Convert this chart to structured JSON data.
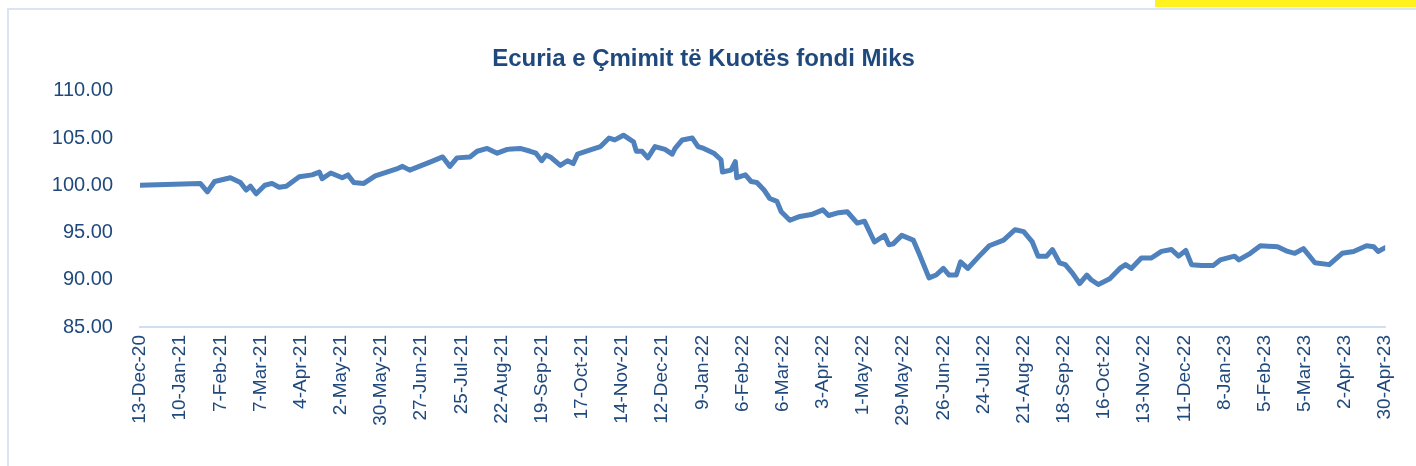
{
  "chart_data": {
    "type": "line",
    "title": "Ecuria e Çmimit të Kuotës fondi Miks",
    "x": [
      "2020-12-13",
      "2021-01-24",
      "2021-01-29",
      "2021-02-03",
      "2021-02-14",
      "2021-02-21",
      "2021-02-25",
      "2021-02-28",
      "2021-03-04",
      "2021-03-10",
      "2021-03-15",
      "2021-03-20",
      "2021-03-25",
      "2021-04-03",
      "2021-04-12",
      "2021-04-17",
      "2021-04-19",
      "2021-04-25",
      "2021-05-03",
      "2021-05-07",
      "2021-05-11",
      "2021-05-18",
      "2021-05-26",
      "2021-06-11",
      "2021-06-14",
      "2021-06-19",
      "2021-07-04",
      "2021-07-12",
      "2021-07-17",
      "2021-07-22",
      "2021-07-31",
      "2021-08-05",
      "2021-08-12",
      "2021-08-19",
      "2021-08-26",
      "2021-09-04",
      "2021-09-11",
      "2021-09-15",
      "2021-09-19",
      "2021-09-22",
      "2021-09-25",
      "2021-10-02",
      "2021-10-07",
      "2021-10-11",
      "2021-10-14",
      "2021-10-24",
      "2021-10-30",
      "2021-11-05",
      "2021-11-09",
      "2021-11-15",
      "2021-11-22",
      "2021-11-24",
      "2021-11-28",
      "2021-12-02",
      "2021-12-07",
      "2021-12-14",
      "2021-12-19",
      "2021-12-21",
      "2021-12-26",
      "2022-01-02",
      "2022-01-06",
      "2022-01-10",
      "2022-01-17",
      "2022-01-22",
      "2022-01-23",
      "2022-01-29",
      "2022-02-01",
      "2022-02-02",
      "2022-02-08",
      "2022-02-12",
      "2022-02-16",
      "2022-02-21",
      "2022-02-25",
      "2022-03-02",
      "2022-03-05",
      "2022-03-11",
      "2022-03-18",
      "2022-03-26",
      "2022-04-03",
      "2022-04-07",
      "2022-04-14",
      "2022-04-20",
      "2022-04-27",
      "2022-05-02",
      "2022-05-09",
      "2022-05-16",
      "2022-05-19",
      "2022-05-22",
      "2022-05-28",
      "2022-06-05",
      "2022-06-09",
      "2022-06-16",
      "2022-06-21",
      "2022-06-26",
      "2022-06-30",
      "2022-07-05",
      "2022-07-08",
      "2022-07-13",
      "2022-07-21",
      "2022-07-28",
      "2022-08-07",
      "2022-08-15",
      "2022-08-21",
      "2022-08-27",
      "2022-08-31",
      "2022-09-06",
      "2022-09-10",
      "2022-09-15",
      "2022-09-19",
      "2022-09-24",
      "2022-09-29",
      "2022-10-04",
      "2022-10-07",
      "2022-10-12",
      "2022-10-20",
      "2022-10-27",
      "2022-10-31",
      "2022-11-04",
      "2022-11-11",
      "2022-11-18",
      "2022-11-25",
      "2022-12-02",
      "2022-12-07",
      "2022-12-12",
      "2022-12-16",
      "2022-12-23",
      "2022-12-31",
      "2023-01-05",
      "2023-01-15",
      "2023-01-18",
      "2023-01-26",
      "2023-02-02",
      "2023-02-14",
      "2023-02-21",
      "2023-02-26",
      "2023-03-04",
      "2023-03-12",
      "2023-03-22",
      "2023-03-31",
      "2023-04-08",
      "2023-04-17",
      "2023-04-22",
      "2023-04-25",
      "2023-04-30"
    ],
    "series": [
      {
        "color": "#4f81bd",
        "values": [
          100.0,
          100.2,
          99.3,
          100.4,
          100.8,
          100.3,
          99.5,
          99.9,
          99.1,
          100.0,
          100.2,
          99.8,
          99.9,
          100.9,
          101.1,
          101.4,
          100.7,
          101.3,
          100.8,
          101.1,
          100.3,
          100.2,
          101.0,
          101.8,
          102.0,
          101.6,
          102.5,
          103.0,
          102.0,
          102.9,
          103.0,
          103.6,
          103.9,
          103.4,
          103.8,
          103.9,
          103.6,
          103.4,
          102.6,
          103.2,
          103.0,
          102.1,
          102.6,
          102.3,
          103.3,
          103.8,
          104.1,
          105.0,
          104.8,
          105.3,
          104.6,
          103.6,
          103.6,
          102.9,
          104.1,
          103.8,
          103.3,
          103.9,
          104.8,
          105.0,
          104.1,
          103.9,
          103.4,
          102.7,
          101.4,
          101.6,
          102.5,
          100.8,
          101.1,
          100.4,
          100.3,
          99.5,
          98.6,
          98.3,
          97.2,
          96.3,
          96.7,
          96.9,
          97.4,
          96.8,
          97.1,
          97.2,
          96.0,
          96.2,
          94.0,
          94.7,
          93.7,
          93.8,
          94.7,
          94.2,
          92.8,
          90.2,
          90.5,
          91.2,
          90.5,
          90.5,
          91.9,
          91.2,
          92.5,
          93.6,
          94.2,
          95.3,
          95.1,
          94.0,
          92.5,
          92.5,
          93.2,
          91.8,
          91.6,
          90.7,
          89.6,
          90.5,
          90.0,
          89.5,
          90.1,
          91.2,
          91.6,
          91.2,
          92.3,
          92.3,
          93.0,
          93.2,
          92.5,
          93.1,
          91.6,
          91.5,
          91.5,
          92.1,
          92.5,
          92.1,
          92.8,
          93.6,
          93.5,
          93.0,
          92.8,
          93.3,
          91.8,
          91.6,
          92.8,
          93.0,
          93.6,
          93.5,
          93.0,
          93.4
        ]
      }
    ],
    "xlim": [
      "2020-12-13",
      "2023-04-30"
    ],
    "xticks": [
      {
        "value": "2020-12-13",
        "label": "13-Dec-20"
      },
      {
        "value": "2021-01-10",
        "label": "10-Jan-21"
      },
      {
        "value": "2021-02-07",
        "label": "7-Feb-21"
      },
      {
        "value": "2021-03-07",
        "label": "7-Mar-21"
      },
      {
        "value": "2021-04-04",
        "label": "4-Apr-21"
      },
      {
        "value": "2021-05-02",
        "label": "2-May-21"
      },
      {
        "value": "2021-05-30",
        "label": "30-May-21"
      },
      {
        "value": "2021-06-27",
        "label": "27-Jun-21"
      },
      {
        "value": "2021-07-25",
        "label": "25-Jul-21"
      },
      {
        "value": "2021-08-22",
        "label": "22-Aug-21"
      },
      {
        "value": "2021-09-19",
        "label": "19-Sep-21"
      },
      {
        "value": "2021-10-17",
        "label": "17-Oct-21"
      },
      {
        "value": "2021-11-14",
        "label": "14-Nov-21"
      },
      {
        "value": "2021-12-12",
        "label": "12-Dec-21"
      },
      {
        "value": "2022-01-09",
        "label": "9-Jan-22"
      },
      {
        "value": "2022-02-06",
        "label": "6-Feb-22"
      },
      {
        "value": "2022-03-06",
        "label": "6-Mar-22"
      },
      {
        "value": "2022-04-03",
        "label": "3-Apr-22"
      },
      {
        "value": "2022-05-01",
        "label": "1-May-22"
      },
      {
        "value": "2022-05-29",
        "label": "29-May-22"
      },
      {
        "value": "2022-06-26",
        "label": "26-Jun-22"
      },
      {
        "value": "2022-07-24",
        "label": "24-Jul-22"
      },
      {
        "value": "2022-08-21",
        "label": "21-Aug-22"
      },
      {
        "value": "2022-09-18",
        "label": "18-Sep-22"
      },
      {
        "value": "2022-10-16",
        "label": "16-Oct-22"
      },
      {
        "value": "2022-11-13",
        "label": "13-Nov-22"
      },
      {
        "value": "2022-12-11",
        "label": "11-Dec-22"
      },
      {
        "value": "2023-01-08",
        "label": "8-Jan-23"
      },
      {
        "value": "2023-02-05",
        "label": "5-Feb-23"
      },
      {
        "value": "2023-03-05",
        "label": "5-Mar-23"
      },
      {
        "value": "2023-04-02",
        "label": "2-Apr-23"
      },
      {
        "value": "2023-04-30",
        "label": "30-Apr-23"
      }
    ],
    "ylim": [
      85,
      110
    ],
    "yticks": [
      {
        "value": 85,
        "label": "85.00"
      },
      {
        "value": 90,
        "label": "90.00"
      },
      {
        "value": 95,
        "label": "95.00"
      },
      {
        "value": 100,
        "label": "100.00"
      },
      {
        "value": 105,
        "label": "105.00"
      },
      {
        "value": 110,
        "label": "110.00"
      }
    ]
  }
}
